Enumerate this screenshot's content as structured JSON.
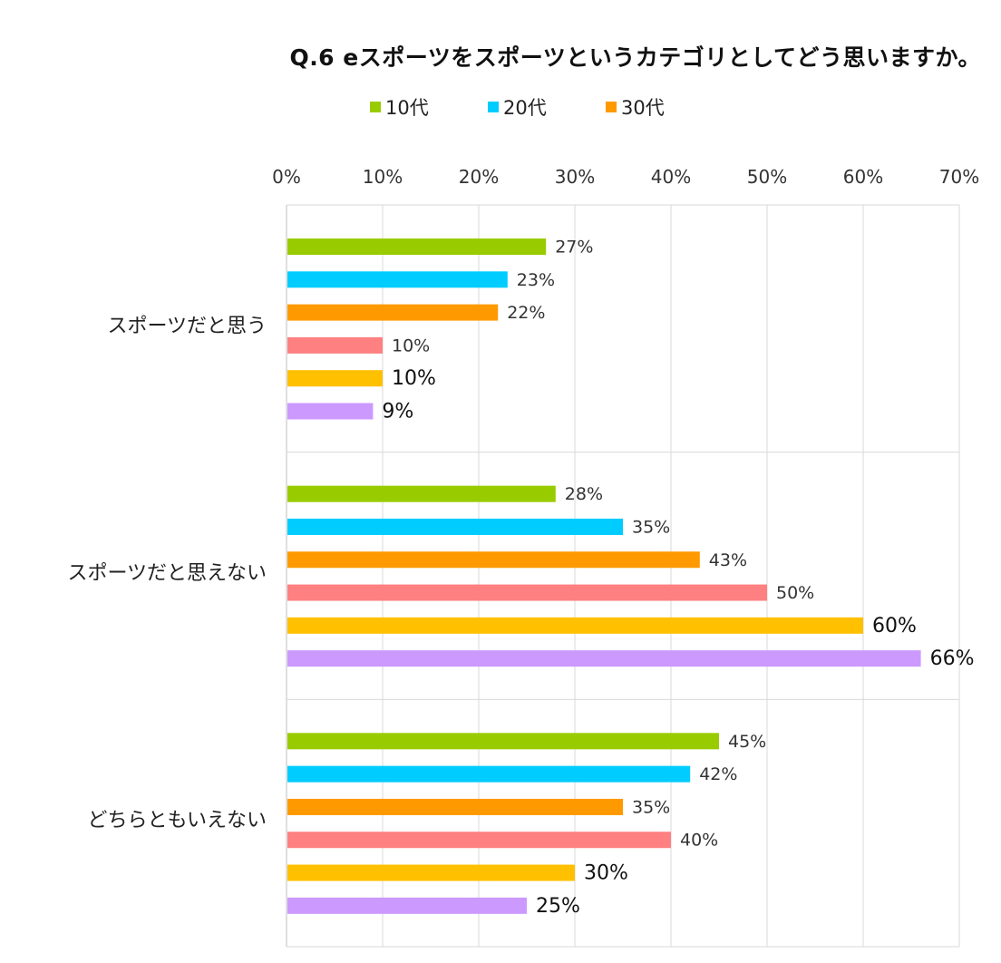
{
  "title": "Q.6 eスポーツをスポーツというカテゴリとしてどう思いますか。",
  "chart_data": {
    "type": "bar",
    "orientation": "horizontal",
    "title": "Q.6 eスポーツをスポーツというカテゴリとしてどう思いますか。",
    "categories": [
      "スポーツだと思う",
      "スポーツだと思えない",
      "どちらともいえない"
    ],
    "xlim": [
      0,
      70
    ],
    "xticks": [
      "0%",
      "10%",
      "20%",
      "30%",
      "40%",
      "50%",
      "60%",
      "70%"
    ],
    "grid": true,
    "legend_placement": "top",
    "series": [
      {
        "name": "10代",
        "color": "#99cc00",
        "values": [
          27,
          28,
          45
        ],
        "labels": [
          "27%",
          "28%",
          "45%"
        ],
        "in_legend": true
      },
      {
        "name": "20代",
        "color": "#00ccff",
        "values": [
          23,
          35,
          42
        ],
        "labels": [
          "23%",
          "35%",
          "42%"
        ],
        "in_legend": true
      },
      {
        "name": "30代",
        "color": "#ff9900",
        "values": [
          22,
          43,
          35
        ],
        "labels": [
          "22%",
          "43%",
          "35%"
        ],
        "in_legend": true
      },
      {
        "name": "",
        "color": "#ff8080",
        "values": [
          10,
          50,
          40
        ],
        "labels": [
          "10%",
          "50%",
          "40%"
        ],
        "in_legend": false
      },
      {
        "name": "",
        "color": "#ffc000",
        "values": [
          10,
          60,
          30
        ],
        "labels": [
          "10%",
          "60%",
          "30%"
        ],
        "in_legend": false,
        "bold_labels": true
      },
      {
        "name": "",
        "color": "#cc99ff",
        "values": [
          9,
          66,
          25
        ],
        "labels": [
          "9%",
          "66%",
          "25%"
        ],
        "in_legend": false,
        "bold_labels": true
      }
    ]
  }
}
